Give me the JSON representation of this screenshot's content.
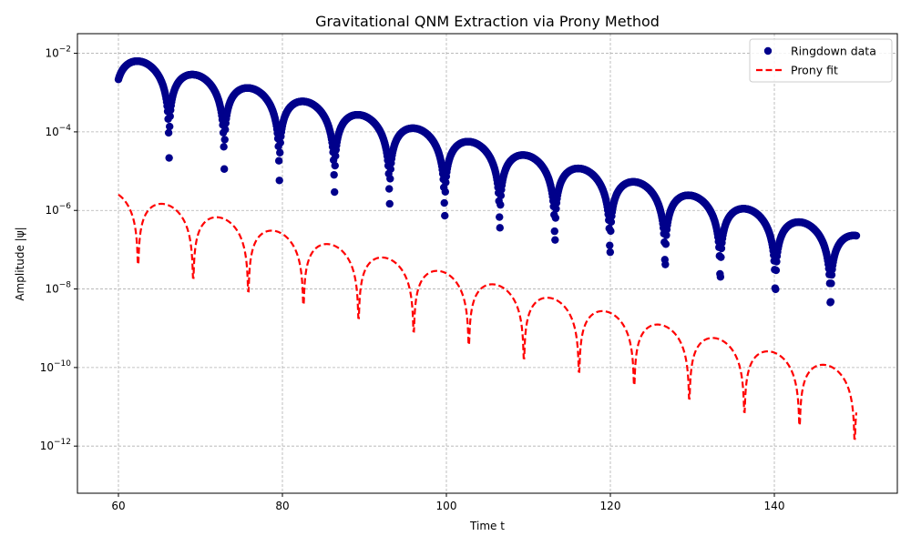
{
  "chart_data": {
    "type": "scatter",
    "title": "Gravitational QNM Extraction via Prony Method",
    "xlabel": "Time t",
    "ylabel": "Amplitude |ψ|",
    "xlim": [
      55,
      155
    ],
    "ylim_log10": [
      -13.2,
      -1.5
    ],
    "yscale": "log",
    "grid": true,
    "legend_position": "top-right",
    "x_ticks": [
      {
        "value": 60,
        "label": "60"
      },
      {
        "value": 80,
        "label": "80"
      },
      {
        "value": 100,
        "label": "100"
      },
      {
        "value": 120,
        "label": "120"
      },
      {
        "value": 140,
        "label": "140"
      }
    ],
    "y_ticks": [
      {
        "exp": -2,
        "base": "10",
        "sup": "−2"
      },
      {
        "exp": -4,
        "base": "10",
        "sup": "−4"
      },
      {
        "exp": -6,
        "base": "10",
        "sup": "−6"
      },
      {
        "exp": -8,
        "base": "10",
        "sup": "−8"
      },
      {
        "exp": -10,
        "base": "10",
        "sup": "−10"
      },
      {
        "exp": -12,
        "base": "10",
        "sup": "−12"
      }
    ],
    "series": [
      {
        "name": "Ringdown data",
        "kind": "scatter",
        "color": "#00008b",
        "x_range": [
          60,
          150
        ],
        "model": {
          "amplitude": 0.0085,
          "decay_time": 8.55,
          "frequency": 0.4673,
          "phase": 1.5708,
          "t0": 60
        },
        "notes_points": "points sampled evenly over the x range; amplitude = amplitude*exp(-(t-t0)/decay_time)*|cos(frequency*(t-t0)+phase-ish)|"
      },
      {
        "name": "Prony fit",
        "kind": "line",
        "color": "#ff0000",
        "dashed": true,
        "x_range": [
          60,
          150
        ],
        "model": {
          "amplitude": 2.8e-06,
          "decay_time": 8.55,
          "frequency": 0.4673,
          "t0": 60,
          "phase": 0.45
        }
      }
    ]
  }
}
